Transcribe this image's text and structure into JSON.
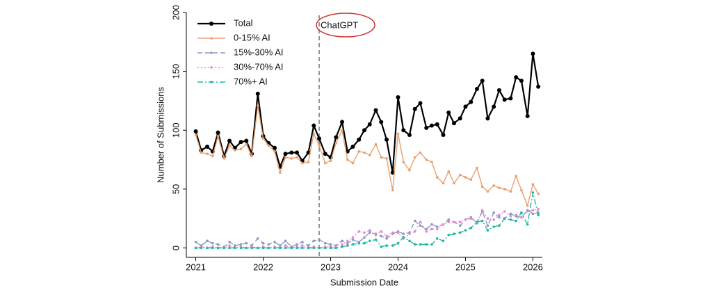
{
  "chart_data": {
    "type": "line",
    "xlabel": "Submission Date",
    "ylabel": "Number of Submissions",
    "x": [
      2021,
      2021.08,
      2021.17,
      2021.25,
      2021.33,
      2021.42,
      2021.5,
      2021.58,
      2021.67,
      2021.75,
      2021.83,
      2021.92,
      2022,
      2022.08,
      2022.17,
      2022.25,
      2022.33,
      2022.42,
      2022.5,
      2022.58,
      2022.67,
      2022.75,
      2022.83,
      2022.92,
      2023,
      2023.08,
      2023.17,
      2023.25,
      2023.33,
      2023.42,
      2023.5,
      2023.58,
      2023.67,
      2023.75,
      2023.83,
      2023.92,
      2024,
      2024.08,
      2024.17,
      2024.25,
      2024.33,
      2024.42,
      2024.5,
      2024.58,
      2024.67,
      2024.75,
      2024.83,
      2024.92,
      2025,
      2025.08,
      2025.17,
      2025.25,
      2025.33,
      2025.42,
      2025.5,
      2025.58,
      2025.67,
      2025.75,
      2025.83,
      2025.92,
      2026,
      2026.08
    ],
    "series": [
      {
        "name": "Total",
        "color": "#000000",
        "dash": "solid",
        "values": [
          99,
          83,
          86,
          82,
          98,
          78,
          91,
          85,
          90,
          91,
          80,
          131,
          95,
          89,
          85,
          69,
          80,
          81,
          81,
          74,
          81,
          104,
          93,
          80,
          77,
          94,
          107,
          82,
          86,
          92,
          100,
          105,
          117,
          107,
          92,
          64,
          128,
          100,
          96,
          118,
          123,
          102,
          104,
          105,
          96,
          115,
          106,
          110,
          120,
          124,
          135,
          142,
          110,
          120,
          134,
          126,
          127,
          145,
          142,
          112,
          165,
          137
        ]
      },
      {
        "name": "0-15% AI",
        "color": "#e8a070",
        "dash": "solid",
        "values": [
          96,
          81,
          80,
          78,
          95,
          76,
          87,
          83,
          84,
          88,
          78,
          121,
          93,
          87,
          82,
          64,
          77,
          76,
          77,
          72,
          73,
          97,
          87,
          72,
          74,
          89,
          100,
          75,
          72,
          82,
          81,
          79,
          88,
          77,
          76,
          49,
          97,
          73,
          66,
          77,
          81,
          75,
          73,
          60,
          55,
          65,
          55,
          62,
          60,
          58,
          68,
          52,
          48,
          53,
          51,
          50,
          48,
          61,
          49,
          36,
          54,
          46
        ]
      },
      {
        "name": "15%-30% AI",
        "color": "#8898c8",
        "dash": "long",
        "values": [
          5,
          2,
          6,
          4,
          3,
          1,
          5,
          2,
          3,
          4,
          2,
          8,
          4,
          3,
          5,
          2,
          6,
          1,
          3,
          5,
          2,
          6,
          7,
          4,
          3,
          2,
          6,
          4,
          7,
          5,
          9,
          13,
          12,
          10,
          8,
          12,
          14,
          12,
          13,
          23,
          19,
          16,
          20,
          18,
          20,
          24,
          22,
          19,
          24,
          26,
          21,
          31,
          19,
          30,
          26,
          25,
          29,
          27,
          26,
          32,
          29,
          30
        ]
      },
      {
        "name": "30%-70% AI",
        "color": "#e888d0",
        "dash": "dot",
        "values": [
          0,
          1,
          0,
          1,
          0,
          1,
          2,
          0,
          1,
          0,
          1,
          0,
          1,
          0,
          1,
          0,
          2,
          0,
          1,
          2,
          0,
          1,
          0,
          1,
          1,
          2,
          3,
          6,
          9,
          14,
          13,
          15,
          11,
          14,
          10,
          13,
          13,
          8,
          12,
          14,
          22,
          14,
          16,
          16,
          20,
          22,
          22,
          22,
          24,
          25,
          22,
          32,
          25,
          24,
          28,
          31,
          27,
          28,
          26,
          31,
          32,
          33
        ]
      },
      {
        "name": "70%+ AI",
        "color": "#20b8a0",
        "dash": "dashdot",
        "values": [
          0,
          0,
          0,
          0,
          0,
          0,
          0,
          0,
          0,
          0,
          0,
          0,
          0,
          0,
          0,
          0,
          0,
          0,
          0,
          0,
          0,
          0,
          0,
          0,
          0,
          0,
          1,
          2,
          3,
          4,
          4,
          6,
          7,
          1,
          2,
          2,
          4,
          9,
          6,
          3,
          3,
          3,
          3,
          8,
          6,
          11,
          12,
          13,
          15,
          17,
          22,
          23,
          15,
          18,
          19,
          25,
          24,
          23,
          30,
          20,
          47,
          28
        ]
      }
    ],
    "xlim": [
      2020.86,
      2026.14
    ],
    "xticks": [
      2021,
      2022,
      2023,
      2024,
      2025,
      2026
    ],
    "ylim": [
      -8,
      200
    ],
    "yticks": [
      0,
      50,
      100,
      150,
      200
    ],
    "legend": "upper left",
    "grid": false,
    "annotations": [
      {
        "text": "ChatGPT",
        "x": 2022.83,
        "color": "#d03030"
      }
    ]
  }
}
